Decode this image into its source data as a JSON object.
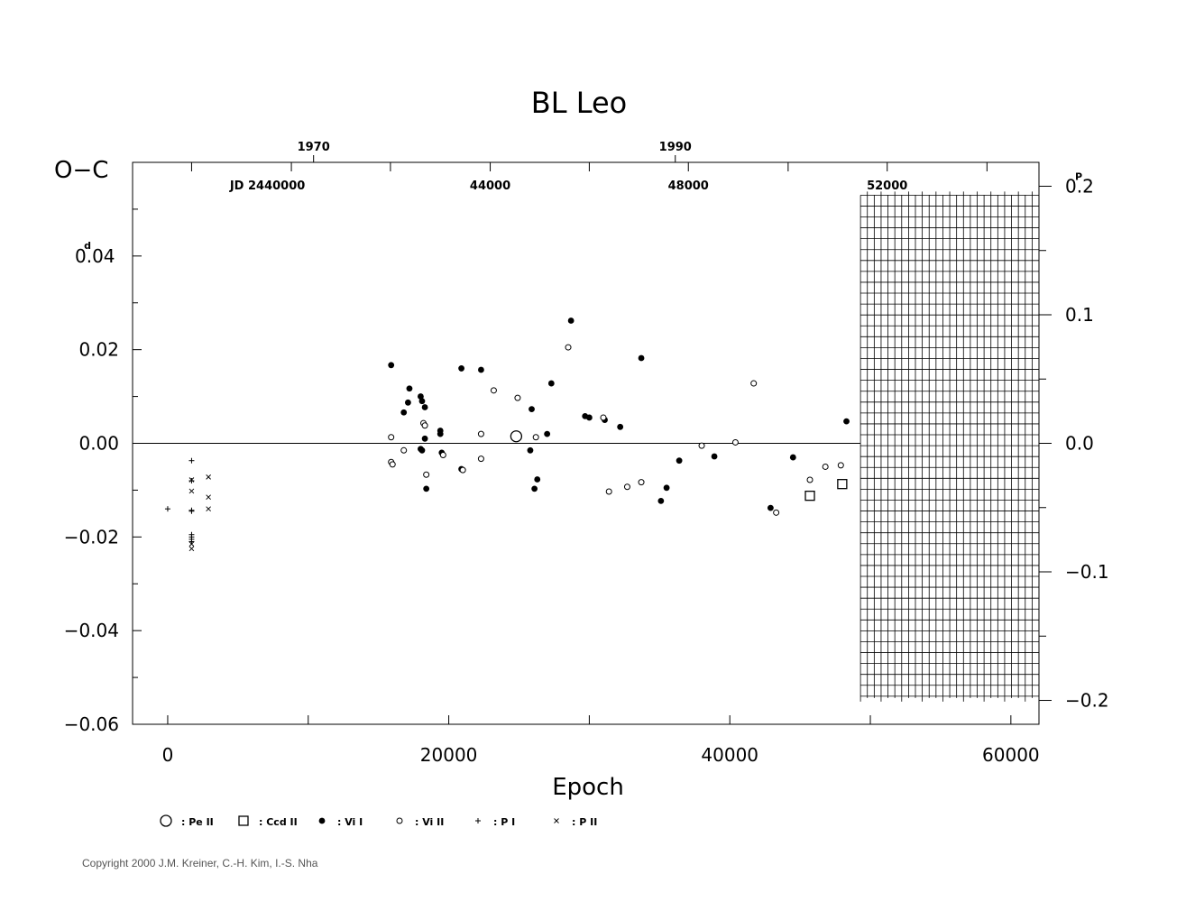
{
  "chart_data": {
    "type": "scatter",
    "title": "BL Leo",
    "ylabel": "O−C",
    "xlabel": "Epoch",
    "xlim": [
      -2500,
      62000
    ],
    "ylim": [
      -0.06,
      0.06
    ],
    "y_unit_label": "0.04",
    "y_unit_sup": "d",
    "x_ticks": [
      0,
      20000,
      40000,
      60000
    ],
    "x_tick_labels": [
      "0",
      "20000",
      "40000",
      "60000"
    ],
    "y_ticks": [
      -0.06,
      -0.04,
      -0.02,
      0.0,
      0.02,
      0.04
    ],
    "y_tick_labels": [
      "−0.06",
      "−0.04",
      "−0.02",
      "0.00",
      "0.02",
      "0"
    ],
    "right_axis": {
      "label": "0.2",
      "sup": "P",
      "ticks": [
        0.2,
        0.1,
        0.0,
        -0.1,
        -0.2
      ],
      "tick_labels": [
        "0",
        "0.1",
        "0.0",
        "−0.1",
        "−0.2"
      ],
      "period_factor": 0.2745
    },
    "top_axis_years": [
      {
        "epoch": 10380,
        "label": "1970"
      },
      {
        "epoch": 36120,
        "label": "1990"
      }
    ],
    "top_axis_jd": {
      "prefix": "JD  2440000",
      "prefix_epoch": 7100,
      "ticks": [
        {
          "epoch": 1700,
          "label": ""
        },
        {
          "epoch": 8800,
          "label": ""
        },
        {
          "epoch": 15850,
          "label": ""
        },
        {
          "epoch": 22950,
          "label": "44000"
        },
        {
          "epoch": 30000,
          "label": ""
        },
        {
          "epoch": 37050,
          "label": "48000"
        },
        {
          "epoch": 44150,
          "label": ""
        },
        {
          "epoch": 51200,
          "label": "52000"
        },
        {
          "epoch": 58300,
          "label": ""
        }
      ]
    },
    "future_region": {
      "x_start": 49300,
      "x_end": 62000,
      "y_low": -0.054,
      "y_high": 0.053
    },
    "series": [
      {
        "name": "Pe II",
        "marker": "open-circle-large",
        "points": [
          [
            24800,
            0.0015
          ]
        ]
      },
      {
        "name": "Ccd II",
        "marker": "open-square",
        "points": [
          [
            45700,
            -0.0112
          ],
          [
            48000,
            -0.0087
          ]
        ]
      },
      {
        "name": "Vi I",
        "marker": "filled-circle",
        "points": [
          [
            15900,
            0.0167
          ],
          [
            16800,
            0.0066
          ],
          [
            17200,
            0.0117
          ],
          [
            17100,
            0.0087
          ],
          [
            18000,
            0.01
          ],
          [
            18100,
            0.009
          ],
          [
            18300,
            0.0077
          ],
          [
            18000,
            -0.0012
          ],
          [
            18100,
            -0.0015
          ],
          [
            18300,
            0.001
          ],
          [
            18400,
            -0.0097
          ],
          [
            19400,
            0.0027
          ],
          [
            19400,
            0.002
          ],
          [
            19500,
            -0.002
          ],
          [
            20900,
            0.016
          ],
          [
            20900,
            -0.0055
          ],
          [
            22300,
            0.0157
          ],
          [
            25900,
            0.0073
          ],
          [
            25800,
            -0.0015
          ],
          [
            26100,
            -0.0097
          ],
          [
            26300,
            -0.0077
          ],
          [
            27000,
            0.002
          ],
          [
            27300,
            0.0128
          ],
          [
            28700,
            0.0262
          ],
          [
            29700,
            0.0058
          ],
          [
            30000,
            0.0055
          ],
          [
            31100,
            0.005
          ],
          [
            32200,
            0.0035
          ],
          [
            33700,
            0.0182
          ],
          [
            35100,
            -0.0123
          ],
          [
            35500,
            -0.0095
          ],
          [
            36400,
            -0.0037
          ],
          [
            38900,
            -0.0028
          ],
          [
            42900,
            -0.0138
          ],
          [
            44500,
            -0.003
          ],
          [
            48300,
            0.0047
          ]
        ]
      },
      {
        "name": "Vi II",
        "marker": "open-circle",
        "points": [
          [
            15900,
            0.0013
          ],
          [
            15900,
            -0.004
          ],
          [
            16000,
            -0.0045
          ],
          [
            16800,
            -0.0015
          ],
          [
            18200,
            0.0043
          ],
          [
            18300,
            0.0038
          ],
          [
            18400,
            -0.0067
          ],
          [
            19600,
            -0.0025
          ],
          [
            21000,
            -0.0057
          ],
          [
            22300,
            0.002
          ],
          [
            22300,
            -0.0033
          ],
          [
            23200,
            0.0113
          ],
          [
            24900,
            0.0097
          ],
          [
            26200,
            0.0013
          ],
          [
            28500,
            0.0205
          ],
          [
            31000,
            0.0055
          ],
          [
            31400,
            -0.0103
          ],
          [
            32700,
            -0.0093
          ],
          [
            33700,
            -0.0083
          ],
          [
            38000,
            -0.0005
          ],
          [
            40400,
            0.0002
          ],
          [
            41700,
            0.0128
          ],
          [
            43300,
            -0.0148
          ],
          [
            45700,
            -0.0078
          ],
          [
            46800,
            -0.005
          ],
          [
            47900,
            -0.0047
          ]
        ]
      },
      {
        "name": "P I",
        "marker": "plus",
        "points": [
          [
            0,
            -0.014
          ],
          [
            1700,
            -0.0037
          ],
          [
            1700,
            -0.008
          ],
          [
            1700,
            -0.0143
          ],
          [
            1700,
            -0.0145
          ],
          [
            1700,
            -0.0195
          ],
          [
            1700,
            -0.02
          ],
          [
            1700,
            -0.0205
          ],
          [
            1700,
            -0.021
          ]
        ]
      },
      {
        "name": "P II",
        "marker": "cross",
        "points": [
          [
            1700,
            -0.0078
          ],
          [
            1700,
            -0.0102
          ],
          [
            1700,
            -0.0215
          ],
          [
            1700,
            -0.0225
          ],
          [
            2900,
            -0.0072
          ],
          [
            2900,
            -0.0115
          ],
          [
            2900,
            -0.014
          ]
        ]
      }
    ],
    "legend": {
      "position": "bottom",
      "entries": [
        {
          "marker": "open-circle-large",
          "label": ": Pe II"
        },
        {
          "marker": "open-square",
          "label": ": Ccd II"
        },
        {
          "marker": "filled-circle",
          "label": ": Vi I"
        },
        {
          "marker": "open-circle",
          "label": ": Vi II"
        },
        {
          "marker": "plus",
          "label": ": P I"
        },
        {
          "marker": "cross",
          "label": ": P II"
        }
      ]
    }
  },
  "copyright": "Copyright 2000 J.M. Kreiner, C.-H. Kim, I.-S. Nha"
}
